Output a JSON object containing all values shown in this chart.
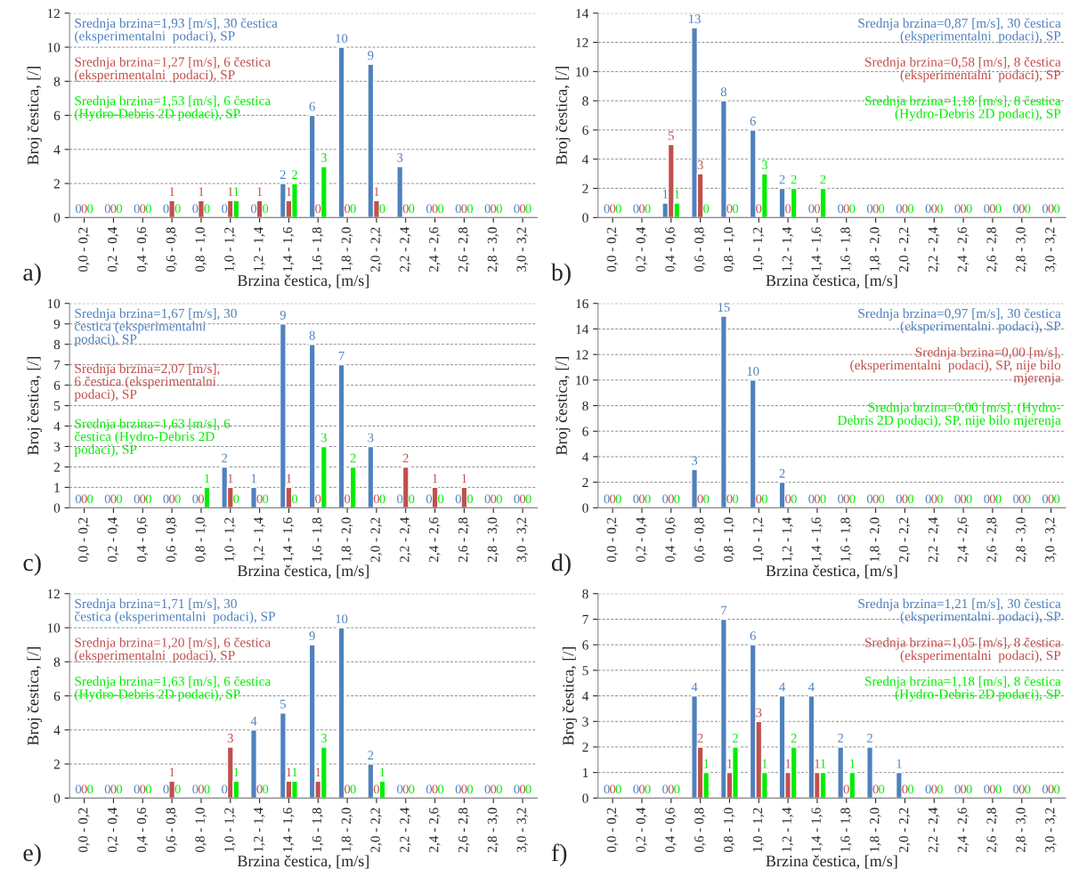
{
  "chart_data": [
    {
      "type": "bar",
      "xlabel": "Brzina čestica, [m/s]",
      "ylabel": "Broj čestica, [/]",
      "annotations": [
        "a)"
      ],
      "categories": [
        "0,0 - 0,2",
        "0,2 - 0,4",
        "0,4 - 0,6",
        "0,6 - 0,8",
        "0,8 - 1,0",
        "1,0 - 1,2",
        "1,2 - 1,4",
        "1,4 - 1,6",
        "1,6 - 1,8",
        "1,8 - 2,0",
        "2,0 - 2,2",
        "2,2 - 2,4",
        "2,4 - 2,6",
        "2,6 - 2,8",
        "2,8 - 3,0",
        "3,0 - 3,2"
      ],
      "ylim": [
        0,
        12
      ],
      "yticks": [
        0,
        2,
        4,
        6,
        8,
        10,
        12
      ],
      "grid": "y",
      "legend": "top left",
      "data_labels": true,
      "series": [
        {
          "name": "Srednja brzina=1,93 [m/s], 30 čestica\n(eksperimentalni  podaci), SP",
          "color": "#4f81bd",
          "values": [
            0,
            0,
            0,
            0,
            0,
            0,
            0,
            2,
            6,
            10,
            9,
            3,
            0,
            0,
            0,
            0
          ]
        },
        {
          "name": "Srednja brzina=1,27 [m/s], 6 čestica\n(eksperimentalni  podaci), SP",
          "color": "#c0504d",
          "values": [
            0,
            0,
            0,
            1,
            1,
            1,
            1,
            1,
            0,
            0,
            1,
            0,
            0,
            0,
            0,
            0
          ]
        },
        {
          "name": "Srednja brzina=1,53 [m/s], 6 čestica\n(Hydro-Debris 2D podaci), SP",
          "color": "#00ee00",
          "values": [
            0,
            0,
            0,
            0,
            0,
            1,
            0,
            2,
            3,
            0,
            0,
            0,
            0,
            0,
            0,
            0
          ]
        }
      ]
    },
    {
      "type": "bar",
      "xlabel": "Brzina čestica, [m/s]",
      "ylabel": "Broj čestica, [/]",
      "annotations": [
        "b)"
      ],
      "categories": [
        "0,0 - 0,2",
        "0,2 - 0,4",
        "0,4 - 0,6",
        "0,6 - 0,8",
        "0,8 - 1,0",
        "1,0 - 1,2",
        "1,2 - 1,4",
        "1,4 - 1,6",
        "1,6 - 1,8",
        "1,8 - 2,0",
        "2,0 - 2,2",
        "2,2 - 2,4",
        "2,4 - 2,6",
        "2,6 - 2,8",
        "2,8 - 3,0",
        "3,0 - 3,2"
      ],
      "ylim": [
        0,
        14
      ],
      "yticks": [
        0,
        2,
        4,
        6,
        8,
        10,
        12,
        14
      ],
      "grid": "y",
      "legend": "top right",
      "data_labels": true,
      "series": [
        {
          "name": "Srednja brzina=0,87 [m/s], 30 čestica\n(eksperimentalni  podaci), SP",
          "color": "#4f81bd",
          "values": [
            0,
            0,
            1,
            13,
            8,
            6,
            2,
            0,
            0,
            0,
            0,
            0,
            0,
            0,
            0,
            0
          ]
        },
        {
          "name": "Srednja brzina=0,58 [m/s], 8 čestica\n(eksperimentalni  podaci), SP",
          "color": "#c0504d",
          "values": [
            0,
            0,
            5,
            3,
            0,
            0,
            0,
            0,
            0,
            0,
            0,
            0,
            0,
            0,
            0,
            0
          ]
        },
        {
          "name": "Srednja brzina=1,18 [m/s], 8 čestica\n(Hydro-Debris 2D podaci), SP",
          "color": "#00ee00",
          "values": [
            0,
            0,
            1,
            0,
            0,
            3,
            2,
            2,
            0,
            0,
            0,
            0,
            0,
            0,
            0,
            0
          ]
        }
      ]
    },
    {
      "type": "bar",
      "xlabel": "Brzina čestica, [m/s]",
      "ylabel": "Broj čestica, [/]",
      "annotations": [
        "c)"
      ],
      "categories": [
        "0,0 - 0,2",
        "0,2 - 0,4",
        "0,4 - 0,6",
        "0,6 - 0,8",
        "0,8 - 1,0",
        "1,0 - 1,2",
        "1,2 - 1,4",
        "1,4 - 1,6",
        "1,6 - 1,8",
        "1,8 - 2,0",
        "2,0 - 2,2",
        "2,2 - 2,4",
        "2,4 - 2,6",
        "2,6 - 2,8",
        "2,8 - 3,0",
        "3,0 - 3,2"
      ],
      "ylim": [
        0,
        10
      ],
      "yticks": [
        0,
        1,
        2,
        3,
        4,
        5,
        6,
        7,
        8,
        9,
        10
      ],
      "grid": "y",
      "legend": "top left",
      "data_labels": true,
      "series": [
        {
          "name": "Srednja brzina=1,67 [m/s], 30\nčestica (eksperimentalni\npodaci), SP",
          "color": "#4f81bd",
          "values": [
            0,
            0,
            0,
            0,
            0,
            2,
            1,
            9,
            8,
            7,
            3,
            0,
            0,
            0,
            0,
            0
          ]
        },
        {
          "name": "Srednja brzina=2,07 [m/s],\n6 čestica (eksperimentalni\npodaci), SP",
          "color": "#c0504d",
          "values": [
            0,
            0,
            0,
            0,
            0,
            1,
            0,
            1,
            0,
            0,
            0,
            2,
            1,
            1,
            0,
            0
          ]
        },
        {
          "name": "Srednja brzina=1,63 [m/s], 6\nčestica (Hydro-Debris 2D\npodaci), SP",
          "color": "#00ee00",
          "values": [
            0,
            0,
            0,
            0,
            1,
            0,
            0,
            0,
            3,
            2,
            0,
            0,
            0,
            0,
            0,
            0
          ]
        }
      ]
    },
    {
      "type": "bar",
      "xlabel": "Brzina čestica, [m/s]",
      "ylabel": "Broj čestica, [/]",
      "annotations": [
        "d)"
      ],
      "categories": [
        "0,0 - 0,2",
        "0,2 - 0,4",
        "0,4 - 0,6",
        "0,6 - 0,8",
        "0,8 - 1,0",
        "1,0 - 1,2",
        "1,2 - 1,4",
        "1,4 - 1,6",
        "1,6 - 1,8",
        "1,8 - 2,0",
        "2,0 - 2,2",
        "2,2 - 2,4",
        "2,4 - 2,6",
        "2,6 - 2,8",
        "2,8 - 3,0",
        "3,0 - 3,2"
      ],
      "ylim": [
        0,
        16
      ],
      "yticks": [
        0,
        2,
        4,
        6,
        8,
        10,
        12,
        14,
        16
      ],
      "grid": "y",
      "legend": "top right",
      "data_labels": true,
      "series": [
        {
          "name": "Srednja brzina=0,97 [m/s], 30 čestica\n(eksperimentalni  podaci), SP",
          "color": "#4f81bd",
          "values": [
            0,
            0,
            0,
            3,
            15,
            10,
            2,
            0,
            0,
            0,
            0,
            0,
            0,
            0,
            0,
            0
          ]
        },
        {
          "name": "Srednja brzina=0,00 [m/s],\n(eksperimentalni  podaci), SP, nije bilo\nmjerenja",
          "color": "#c0504d",
          "values": [
            0,
            0,
            0,
            0,
            0,
            0,
            0,
            0,
            0,
            0,
            0,
            0,
            0,
            0,
            0,
            0
          ]
        },
        {
          "name": "Srednja brzina=0,00 [m/s], (Hydro-\nDebris 2D podaci), SP, nije bilo mjerenja",
          "color": "#00ee00",
          "values": [
            0,
            0,
            0,
            0,
            0,
            0,
            0,
            0,
            0,
            0,
            0,
            0,
            0,
            0,
            0,
            0
          ]
        }
      ]
    },
    {
      "type": "bar",
      "xlabel": "Brzina čestica, [m/s]",
      "ylabel": "Broj čestica, [/]",
      "annotations": [
        "e)"
      ],
      "categories": [
        "0,0 - 0,2",
        "0,2 - 0,4",
        "0,4 - 0,6",
        "0,6 - 0,8",
        "0,8 - 1,0",
        "1,0 - 1,2",
        "1,2 - 1,4",
        "1,4 - 1,6",
        "1,6 - 1,8",
        "1,8 - 2,0",
        "2,0 - 2,2",
        "2,2 - 2,4",
        "2,4 - 2,6",
        "2,6 - 2,8",
        "2,8 - 3,0",
        "3,0 - 3,2"
      ],
      "ylim": [
        0,
        12
      ],
      "yticks": [
        0,
        2,
        4,
        6,
        8,
        10,
        12
      ],
      "grid": "y",
      "legend": "top left",
      "data_labels": true,
      "series": [
        {
          "name": "Srednja brzina=1,71 [m/s], 30\nčestica (eksperimentalni  podaci), SP",
          "color": "#4f81bd",
          "values": [
            0,
            0,
            0,
            0,
            0,
            0,
            4,
            5,
            9,
            10,
            2,
            0,
            0,
            0,
            0,
            0
          ]
        },
        {
          "name": "Srednja brzina=1,20 [m/s], 6 čestica\n(eksperimentalni  podaci), SP",
          "color": "#c0504d",
          "values": [
            0,
            0,
            0,
            1,
            0,
            3,
            0,
            1,
            1,
            0,
            0,
            0,
            0,
            0,
            0,
            0
          ]
        },
        {
          "name": "Srednja brzina=1,63 [m/s], 6 čestica\n(Hydro-Debris 2D podaci), SP",
          "color": "#00ee00",
          "values": [
            0,
            0,
            0,
            0,
            0,
            1,
            0,
            1,
            3,
            0,
            1,
            0,
            0,
            0,
            0,
            0
          ]
        }
      ]
    },
    {
      "type": "bar",
      "xlabel": "Brzina čestica, [m/s]",
      "ylabel": "Broj čestica, [/]",
      "annotations": [
        "f)"
      ],
      "categories": [
        "0,0 - 0,2",
        "0,2 - 0,4",
        "0,4 - 0,6",
        "0,6 - 0,8",
        "0,8 - 1,0",
        "1,0 - 1,2",
        "1,2 - 1,4",
        "1,4 - 1,6",
        "1,6 - 1,8",
        "1,8 - 2,0",
        "2,0 - 2,2",
        "2,2 - 2,4",
        "2,4 - 2,6",
        "2,6 - 2,8",
        "2,8 - 3,0",
        "3,0 - 3,2"
      ],
      "ylim": [
        0,
        8
      ],
      "yticks": [
        0,
        1,
        2,
        3,
        4,
        5,
        6,
        7,
        8
      ],
      "grid": "y",
      "legend": "top right",
      "data_labels": true,
      "series": [
        {
          "name": "Srednja brzina=1,21 [m/s], 30 čestica\n(eksperimentalni  podaci), SP",
          "color": "#4f81bd",
          "values": [
            0,
            0,
            0,
            4,
            7,
            6,
            4,
            4,
            2,
            2,
            1,
            0,
            0,
            0,
            0,
            0
          ]
        },
        {
          "name": "Srednja brzina=1,05 [m/s], 8 čestica\n(eksperimentalni  podaci), SP",
          "color": "#c0504d",
          "values": [
            0,
            0,
            0,
            2,
            1,
            3,
            1,
            1,
            0,
            0,
            0,
            0,
            0,
            0,
            0,
            0
          ]
        },
        {
          "name": "Srednja brzina=1,18 [m/s], 8 čestica\n(Hydro-Debris 2D podaci), SP",
          "color": "#00ee00",
          "values": [
            0,
            0,
            0,
            1,
            2,
            1,
            2,
            1,
            1,
            0,
            0,
            0,
            0,
            0,
            0,
            0
          ]
        }
      ]
    }
  ]
}
